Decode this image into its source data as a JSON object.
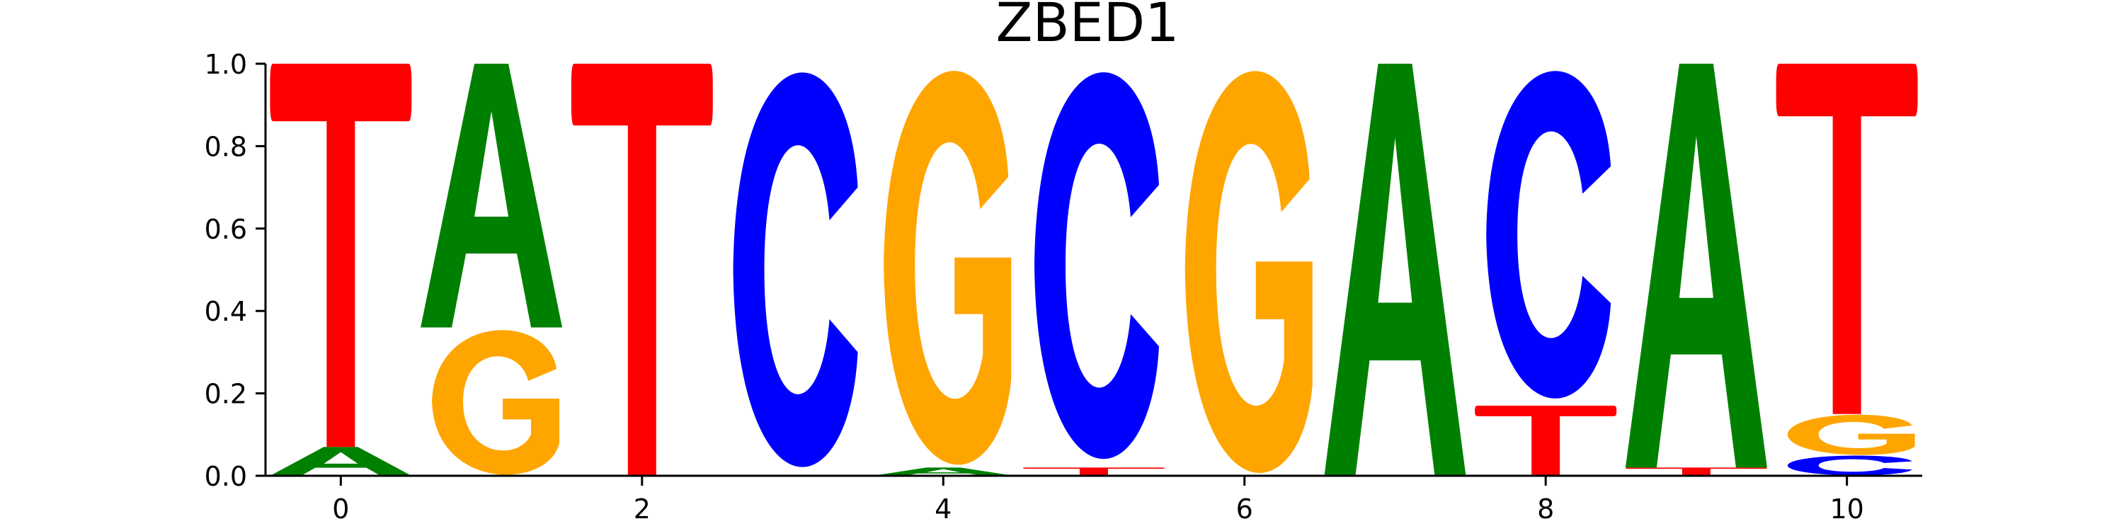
{
  "chart_data": {
    "type": "sequence-logo",
    "title": "ZBED1",
    "xlabel": "",
    "ylabel": "",
    "ylim": [
      0,
      1
    ],
    "xlim": [
      -0.5,
      10.5
    ],
    "xticks": [
      "0",
      "2",
      "4",
      "6",
      "8",
      "10"
    ],
    "yticks": [
      "0.0",
      "0.2",
      "0.4",
      "0.6",
      "0.8",
      "1.0"
    ],
    "colors": {
      "A": "#008000",
      "C": "#0000ff",
      "G": "#ffa500",
      "T": "#ff0000"
    },
    "positions": [
      {
        "x": 0,
        "letters": [
          {
            "base": "A",
            "height": 0.07
          },
          {
            "base": "T",
            "height": 0.93
          }
        ]
      },
      {
        "x": 1,
        "letters": [
          {
            "base": "G",
            "height": 0.36
          },
          {
            "base": "A",
            "height": 0.64
          }
        ]
      },
      {
        "x": 2,
        "letters": [
          {
            "base": "T",
            "height": 1.0
          }
        ]
      },
      {
        "x": 3,
        "letters": [
          {
            "base": "C",
            "height": 1.0
          }
        ]
      },
      {
        "x": 4,
        "letters": [
          {
            "base": "A",
            "height": 0.02
          },
          {
            "base": "G",
            "height": 0.98
          }
        ]
      },
      {
        "x": 5,
        "letters": [
          {
            "base": "T",
            "height": 0.02
          },
          {
            "base": "C",
            "height": 0.98
          }
        ]
      },
      {
        "x": 6,
        "letters": [
          {
            "base": "G",
            "height": 1.0
          }
        ]
      },
      {
        "x": 7,
        "letters": [
          {
            "base": "A",
            "height": 1.0
          }
        ]
      },
      {
        "x": 8,
        "letters": [
          {
            "base": "T",
            "height": 0.17
          },
          {
            "base": "C",
            "height": 0.83
          }
        ]
      },
      {
        "x": 9,
        "letters": [
          {
            "base": "T",
            "height": 0.02
          },
          {
            "base": "A",
            "height": 0.98
          }
        ]
      },
      {
        "x": 10,
        "letters": [
          {
            "base": "C",
            "height": 0.05
          },
          {
            "base": "G",
            "height": 0.1
          },
          {
            "base": "T",
            "height": 0.85
          }
        ]
      }
    ]
  }
}
